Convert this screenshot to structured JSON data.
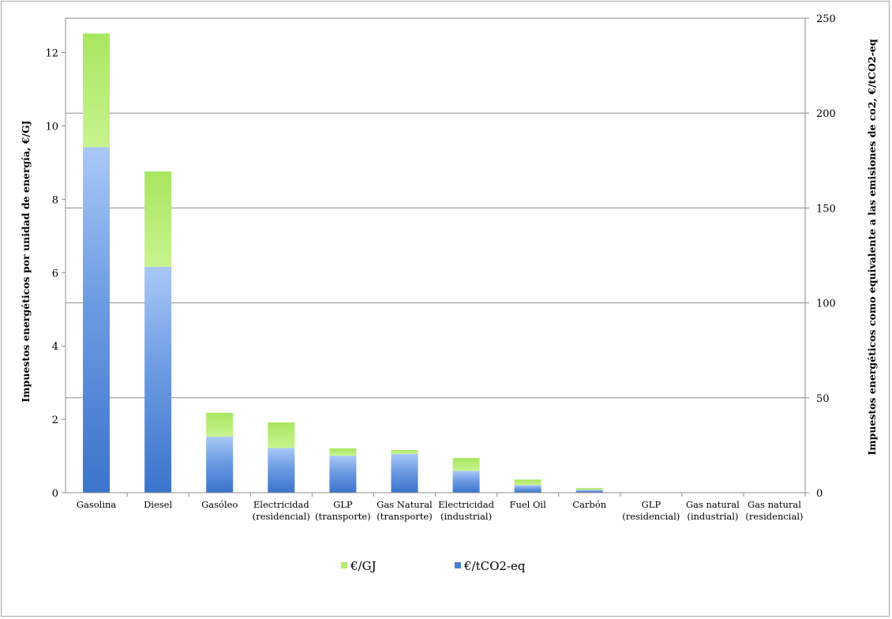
{
  "chart_data": {
    "type": "bar",
    "stacked": true,
    "categories": [
      [
        "Gasolina"
      ],
      [
        "Diesel"
      ],
      [
        "Gasóleo"
      ],
      [
        "Electricidad",
        "(residencial)"
      ],
      [
        "GLP",
        "(transporte)"
      ],
      [
        "Gas Natural",
        "(transporte)"
      ],
      [
        "Electricidad",
        "(industrial)"
      ],
      [
        "Fuel Oil"
      ],
      [
        "Carbón"
      ],
      [
        "GLP",
        "(residencial)"
      ],
      [
        "Gas natural",
        "(industrial)"
      ],
      [
        "Gas natural",
        "(residencial)"
      ]
    ],
    "series": [
      {
        "name": "€/tCO2-eq",
        "color": "#4a7ed0",
        "axis": "right",
        "values": [
          182,
          119,
          29.5,
          23.5,
          19.5,
          20.5,
          11.5,
          4,
          1.5,
          0,
          0,
          0
        ]
      },
      {
        "name": "€/GJ",
        "color": "#b3eb73",
        "axis": "left",
        "values": [
          3.1,
          2.6,
          0.65,
          0.7,
          0.2,
          0.1,
          0.35,
          0.15,
          0.05,
          0,
          0,
          0
        ]
      }
    ],
    "ylabel_left": "Impuestos energéticos por unidad de energía, €/GJ",
    "ylabel_right": "Impuestos energéticos como equivalente a las emisiones de co2, €/tCO2-eq",
    "ylim_left": [
      0,
      13
    ],
    "yticks_left": [
      0,
      2,
      4,
      6,
      8,
      10,
      12
    ],
    "ylim_right": [
      0,
      250
    ],
    "yticks_right": [
      0,
      50,
      100,
      150,
      200,
      250
    ],
    "grid": true,
    "legend_position": "bottom",
    "legend": [
      "€/GJ",
      "€/tCO2-eq"
    ]
  }
}
